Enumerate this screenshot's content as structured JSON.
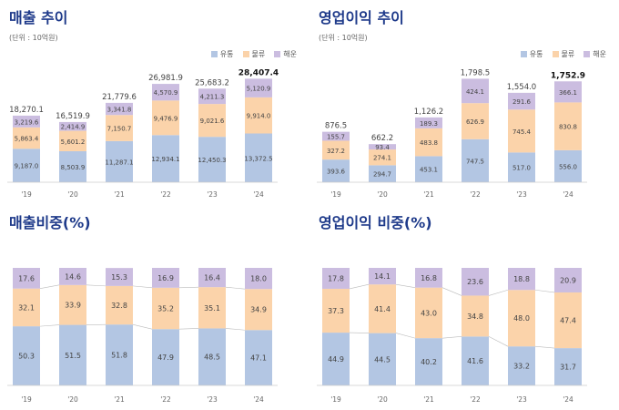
{
  "colors": {
    "유통": "#b3c6e3",
    "물류": "#fbd3aa",
    "해운": "#cbbde0",
    "title": "#1e3a8a"
  },
  "chart_data": [
    {
      "type": "bar",
      "stacked": true,
      "title": "매출 추이",
      "unit": "(단위 : 10억원)",
      "categories": [
        "'19",
        "'20",
        "'21",
        "'22",
        "'23",
        "'24"
      ],
      "series": [
        {
          "name": "유통",
          "values": [
            9187.0,
            8503.9,
            11287.1,
            12934.1,
            12450.3,
            13372.5
          ]
        },
        {
          "name": "물류",
          "values": [
            5863.4,
            5601.2,
            7150.7,
            9476.9,
            9021.6,
            9914.0
          ]
        },
        {
          "name": "해운",
          "values": [
            3219.6,
            2414.9,
            3341.8,
            4570.9,
            4211.3,
            5120.9
          ]
        }
      ],
      "totals": [
        18270.1,
        16519.9,
        21779.6,
        26981.9,
        25683.2,
        28407.4
      ],
      "value_labels": [
        [
          "9,187.0",
          "8,503.9",
          "11,287.1",
          "12,934.1",
          "12,450.3",
          "13,372.5"
        ],
        [
          "5,863.4",
          "5,601.2",
          "7,150.7",
          "9,476.9",
          "9,021.6",
          "9,914.0"
        ],
        [
          "3,219.6",
          "2,414.9",
          "3,341.8",
          "4,570.9",
          "4,211.3",
          "5,120.9"
        ]
      ],
      "total_labels": [
        "18,270.1",
        "16,519.9",
        "21,779.6",
        "26,981.9",
        "25,683.2",
        "28,407.4"
      ],
      "legend": [
        "유통",
        "물류",
        "해운"
      ],
      "legend_position": "top-right",
      "ylim": [
        0,
        30000
      ],
      "grid": false
    },
    {
      "type": "bar",
      "stacked": true,
      "title": "영업이익 추이",
      "unit": "(단위 : 10억원)",
      "categories": [
        "'19",
        "'20",
        "'21",
        "'22",
        "'23",
        "'24"
      ],
      "series": [
        {
          "name": "유통",
          "values": [
            393.6,
            294.7,
            453.1,
            747.5,
            517.0,
            556.0
          ]
        },
        {
          "name": "물류",
          "values": [
            327.2,
            274.1,
            483.8,
            626.9,
            745.4,
            830.8
          ]
        },
        {
          "name": "해운",
          "values": [
            155.7,
            93.4,
            189.3,
            424.1,
            291.6,
            366.1
          ]
        }
      ],
      "totals": [
        876.5,
        662.2,
        1126.2,
        1798.5,
        1554.0,
        1752.9
      ],
      "value_labels": [
        [
          "393.6",
          "294.7",
          "453.1",
          "747.5",
          "517.0",
          "556.0"
        ],
        [
          "327.2",
          "274.1",
          "483.8",
          "626.9",
          "745.4",
          "830.8"
        ],
        [
          "155.7",
          "93.4",
          "189.3",
          "424.1",
          "291.6",
          "366.1"
        ]
      ],
      "total_labels": [
        "876.5",
        "662.2",
        "1,126.2",
        "1,798.5",
        "1,554.0",
        "1,752.9"
      ],
      "legend": [
        "유통",
        "물류",
        "해운"
      ],
      "legend_position": "top-right",
      "ylim": [
        0,
        1900
      ],
      "grid": false
    },
    {
      "type": "bar",
      "stacked": true,
      "percent": true,
      "title": "매출비중(%)",
      "categories": [
        "'19",
        "'20",
        "'21",
        "'22",
        "'23",
        "'24"
      ],
      "series": [
        {
          "name": "유통",
          "values": [
            50.3,
            51.5,
            51.8,
            47.9,
            48.5,
            47.1
          ]
        },
        {
          "name": "물류",
          "values": [
            32.1,
            33.9,
            32.8,
            35.2,
            35.1,
            34.9
          ]
        },
        {
          "name": "해운",
          "values": [
            17.6,
            14.6,
            15.3,
            16.9,
            16.4,
            18.0
          ]
        }
      ],
      "value_labels": [
        [
          "50.3",
          "51.5",
          "51.8",
          "47.9",
          "48.5",
          "47.1"
        ],
        [
          "32.1",
          "33.9",
          "32.8",
          "35.2",
          "35.1",
          "34.9"
        ],
        [
          "17.6",
          "14.6",
          "15.3",
          "16.9",
          "16.4",
          "18.0"
        ]
      ],
      "ylim": [
        0,
        100
      ],
      "grid": false
    },
    {
      "type": "bar",
      "stacked": true,
      "percent": true,
      "title": "영업이익 비중(%)",
      "categories": [
        "'19",
        "'20",
        "'21",
        "'22",
        "'23",
        "'24"
      ],
      "series": [
        {
          "name": "유통",
          "values": [
            44.9,
            44.5,
            40.2,
            41.6,
            33.2,
            31.7
          ]
        },
        {
          "name": "물류",
          "values": [
            37.3,
            41.4,
            43.0,
            34.8,
            48.0,
            47.4
          ]
        },
        {
          "name": "해운",
          "values": [
            17.8,
            14.1,
            16.8,
            23.6,
            18.8,
            20.9
          ]
        }
      ],
      "value_labels": [
        [
          "44.9",
          "44.5",
          "40.2",
          "41.6",
          "33.2",
          "31.7"
        ],
        [
          "37.3",
          "41.4",
          "43.0",
          "34.8",
          "48.0",
          "47.4"
        ],
        [
          "17.8",
          "14.1",
          "16.8",
          "23.6",
          "18.8",
          "20.9"
        ]
      ],
      "ylim": [
        0,
        100
      ],
      "grid": false
    }
  ]
}
